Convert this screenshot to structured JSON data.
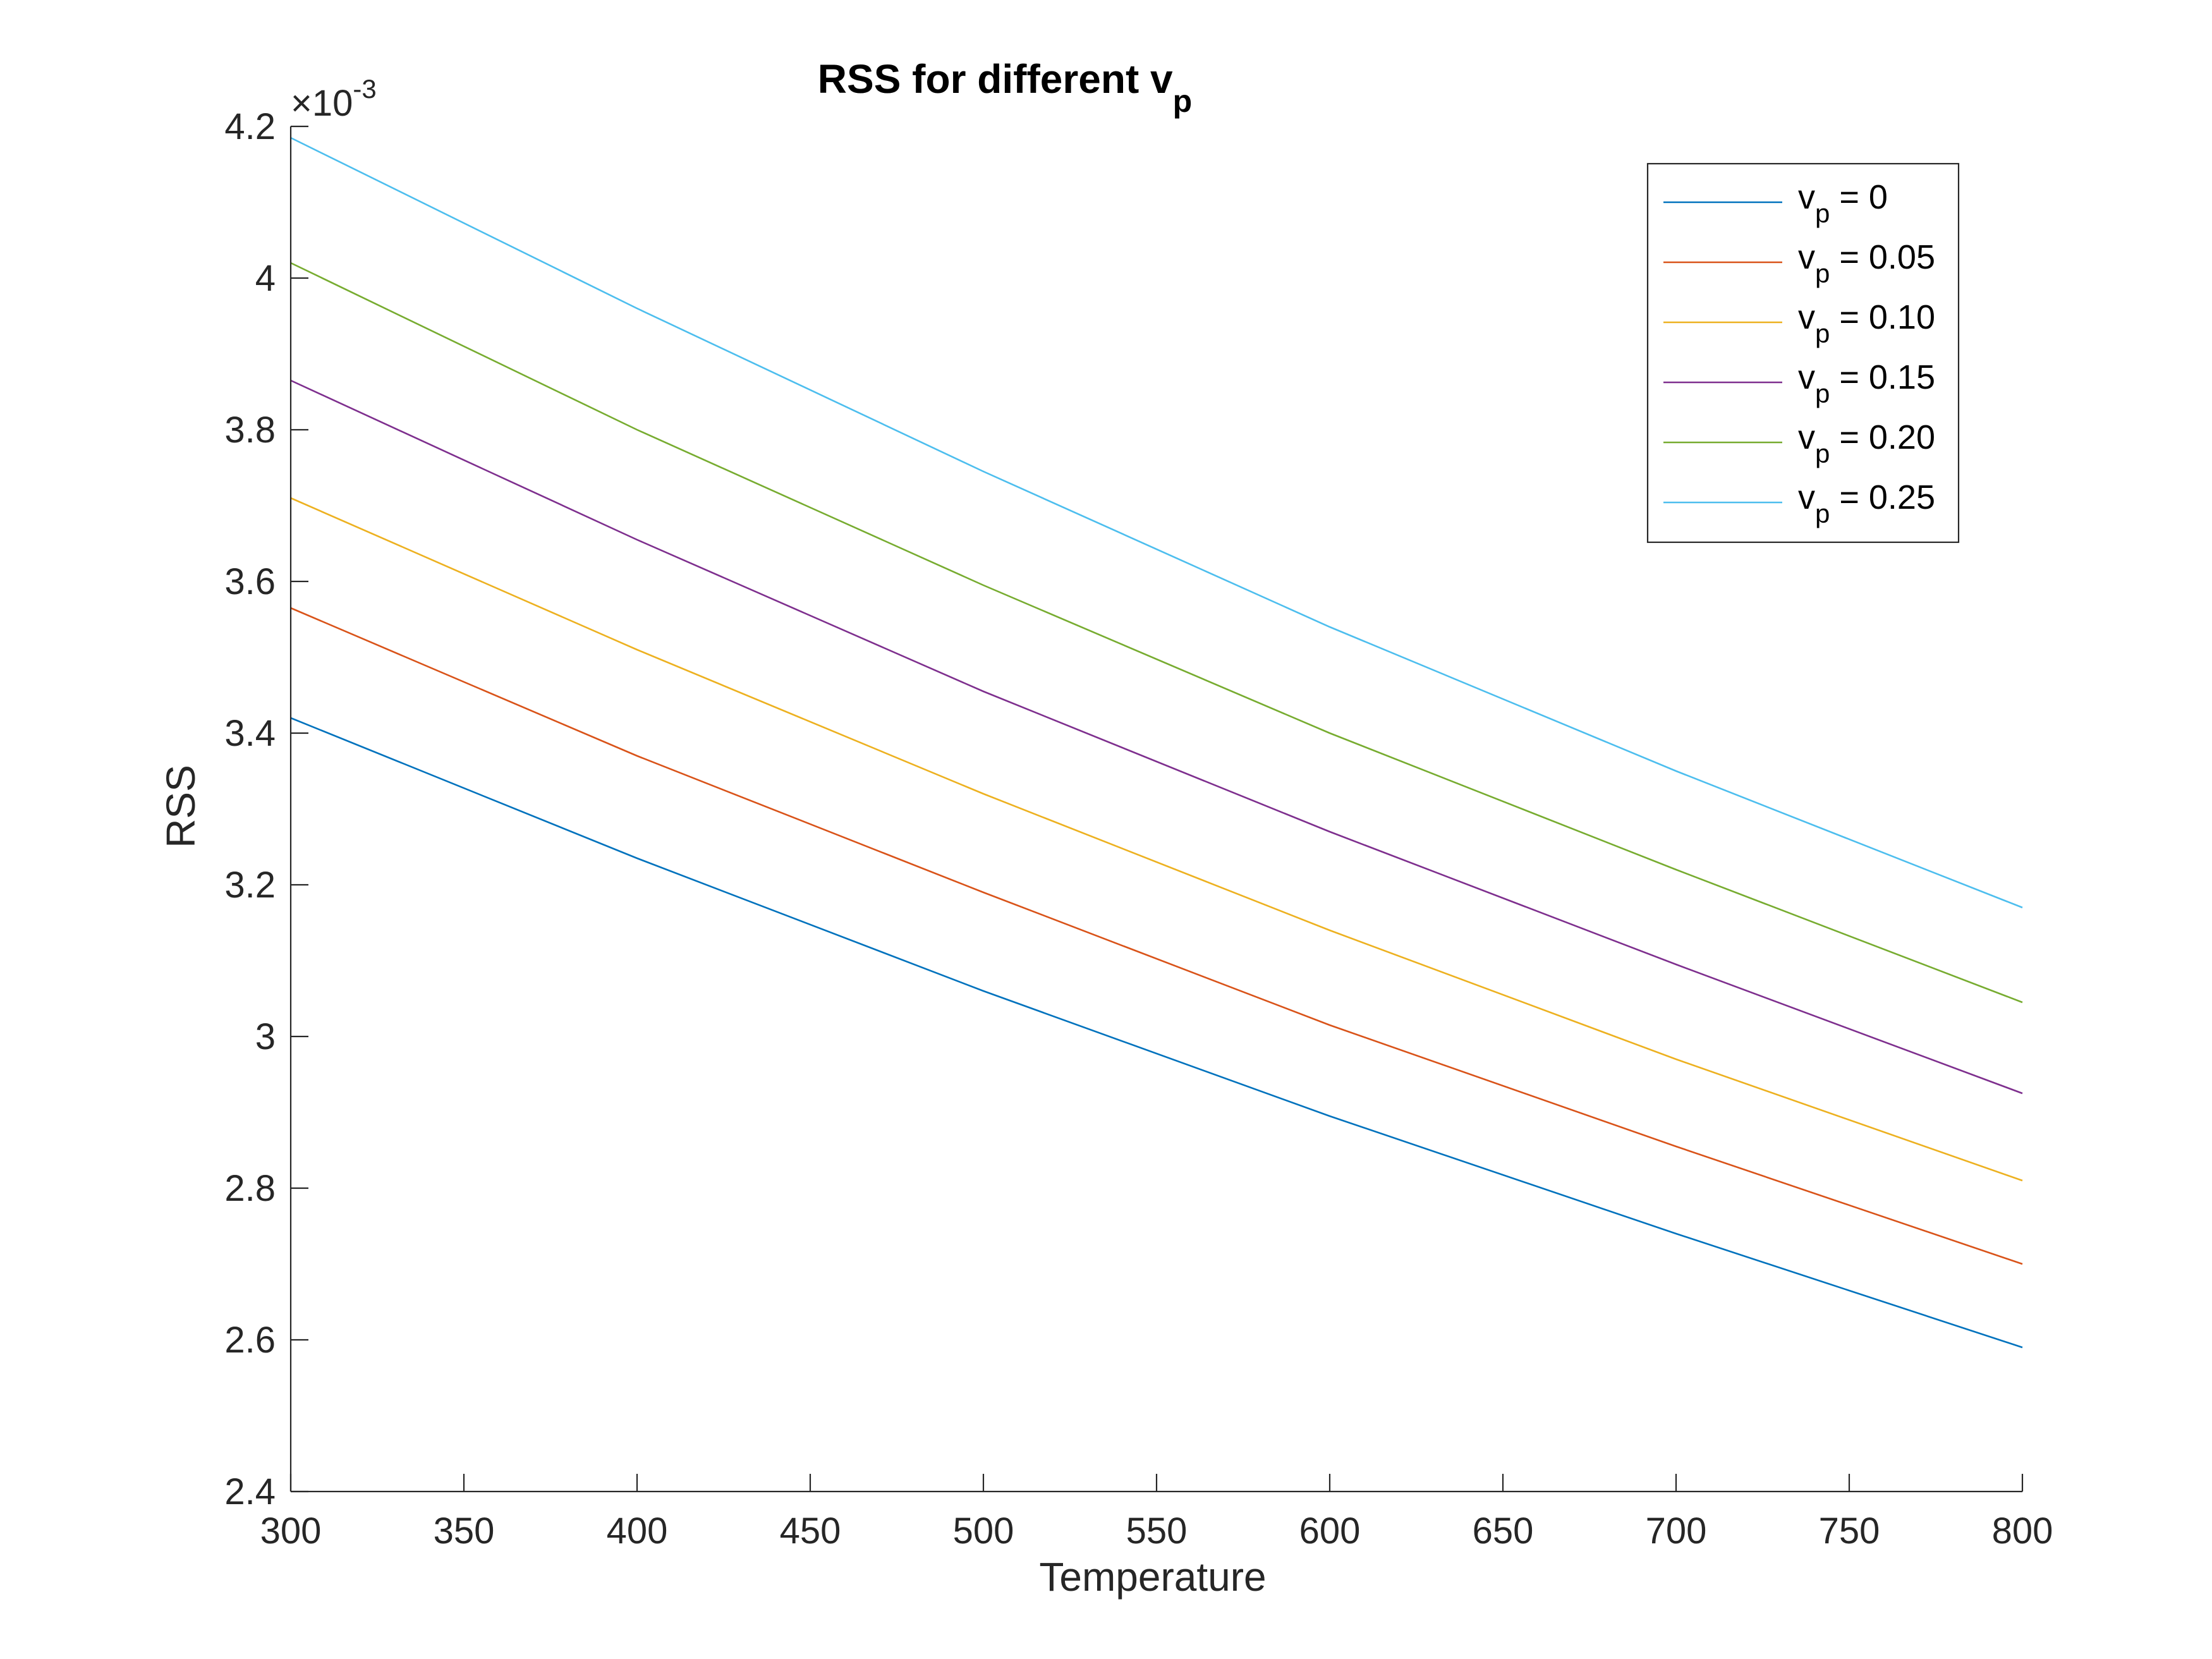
{
  "chart_data": {
    "type": "line",
    "title": "RSS for different v",
    "title_subscript": "p",
    "xlabel": "Temperature",
    "ylabel": "RSS",
    "y_exponent_base": "×10",
    "y_exponent_power": "-3",
    "xlim": [
      300,
      800
    ],
    "ylim": [
      2.4,
      4.2
    ],
    "xticks": [
      300,
      350,
      400,
      450,
      500,
      550,
      600,
      650,
      700,
      750,
      800
    ],
    "yticks": [
      2.4,
      2.6,
      2.8,
      3.0,
      3.2,
      3.4,
      3.6,
      3.8,
      4.0,
      4.2
    ],
    "xtick_labels": [
      "300",
      "350",
      "400",
      "450",
      "500",
      "550",
      "600",
      "650",
      "700",
      "750",
      "800"
    ],
    "ytick_labels": [
      "2.4",
      "2.6",
      "2.8",
      "3",
      "3.2",
      "3.4",
      "3.6",
      "3.8",
      "4",
      "4.2"
    ],
    "grid": false,
    "legend_position": "top-right",
    "x": [
      300,
      400,
      500,
      600,
      700,
      800
    ],
    "series": [
      {
        "name_main": "v",
        "name_sub": "p",
        "name_rest": " = 0",
        "color": "#0072BD",
        "values": [
          3.42,
          3.235,
          3.06,
          2.895,
          2.74,
          2.59
        ]
      },
      {
        "name_main": "v",
        "name_sub": "p",
        "name_rest": " = 0.05",
        "color": "#D95319",
        "values": [
          3.565,
          3.37,
          3.19,
          3.015,
          2.855,
          2.7
        ]
      },
      {
        "name_main": "v",
        "name_sub": "p",
        "name_rest": " = 0.10",
        "color": "#EDB120",
        "values": [
          3.71,
          3.51,
          3.32,
          3.14,
          2.97,
          2.81
        ]
      },
      {
        "name_main": "v",
        "name_sub": "p",
        "name_rest": " = 0.15",
        "color": "#7E2F8E",
        "values": [
          3.865,
          3.655,
          3.455,
          3.27,
          3.095,
          2.925
        ]
      },
      {
        "name_main": "v",
        "name_sub": "p",
        "name_rest": " = 0.20",
        "color": "#77AC30",
        "values": [
          4.02,
          3.8,
          3.595,
          3.4,
          3.22,
          3.045
        ]
      },
      {
        "name_main": "v",
        "name_sub": "p",
        "name_rest": " = 0.25",
        "color": "#4DBEEE",
        "values": [
          4.185,
          3.96,
          3.745,
          3.54,
          3.35,
          3.17
        ]
      }
    ]
  }
}
